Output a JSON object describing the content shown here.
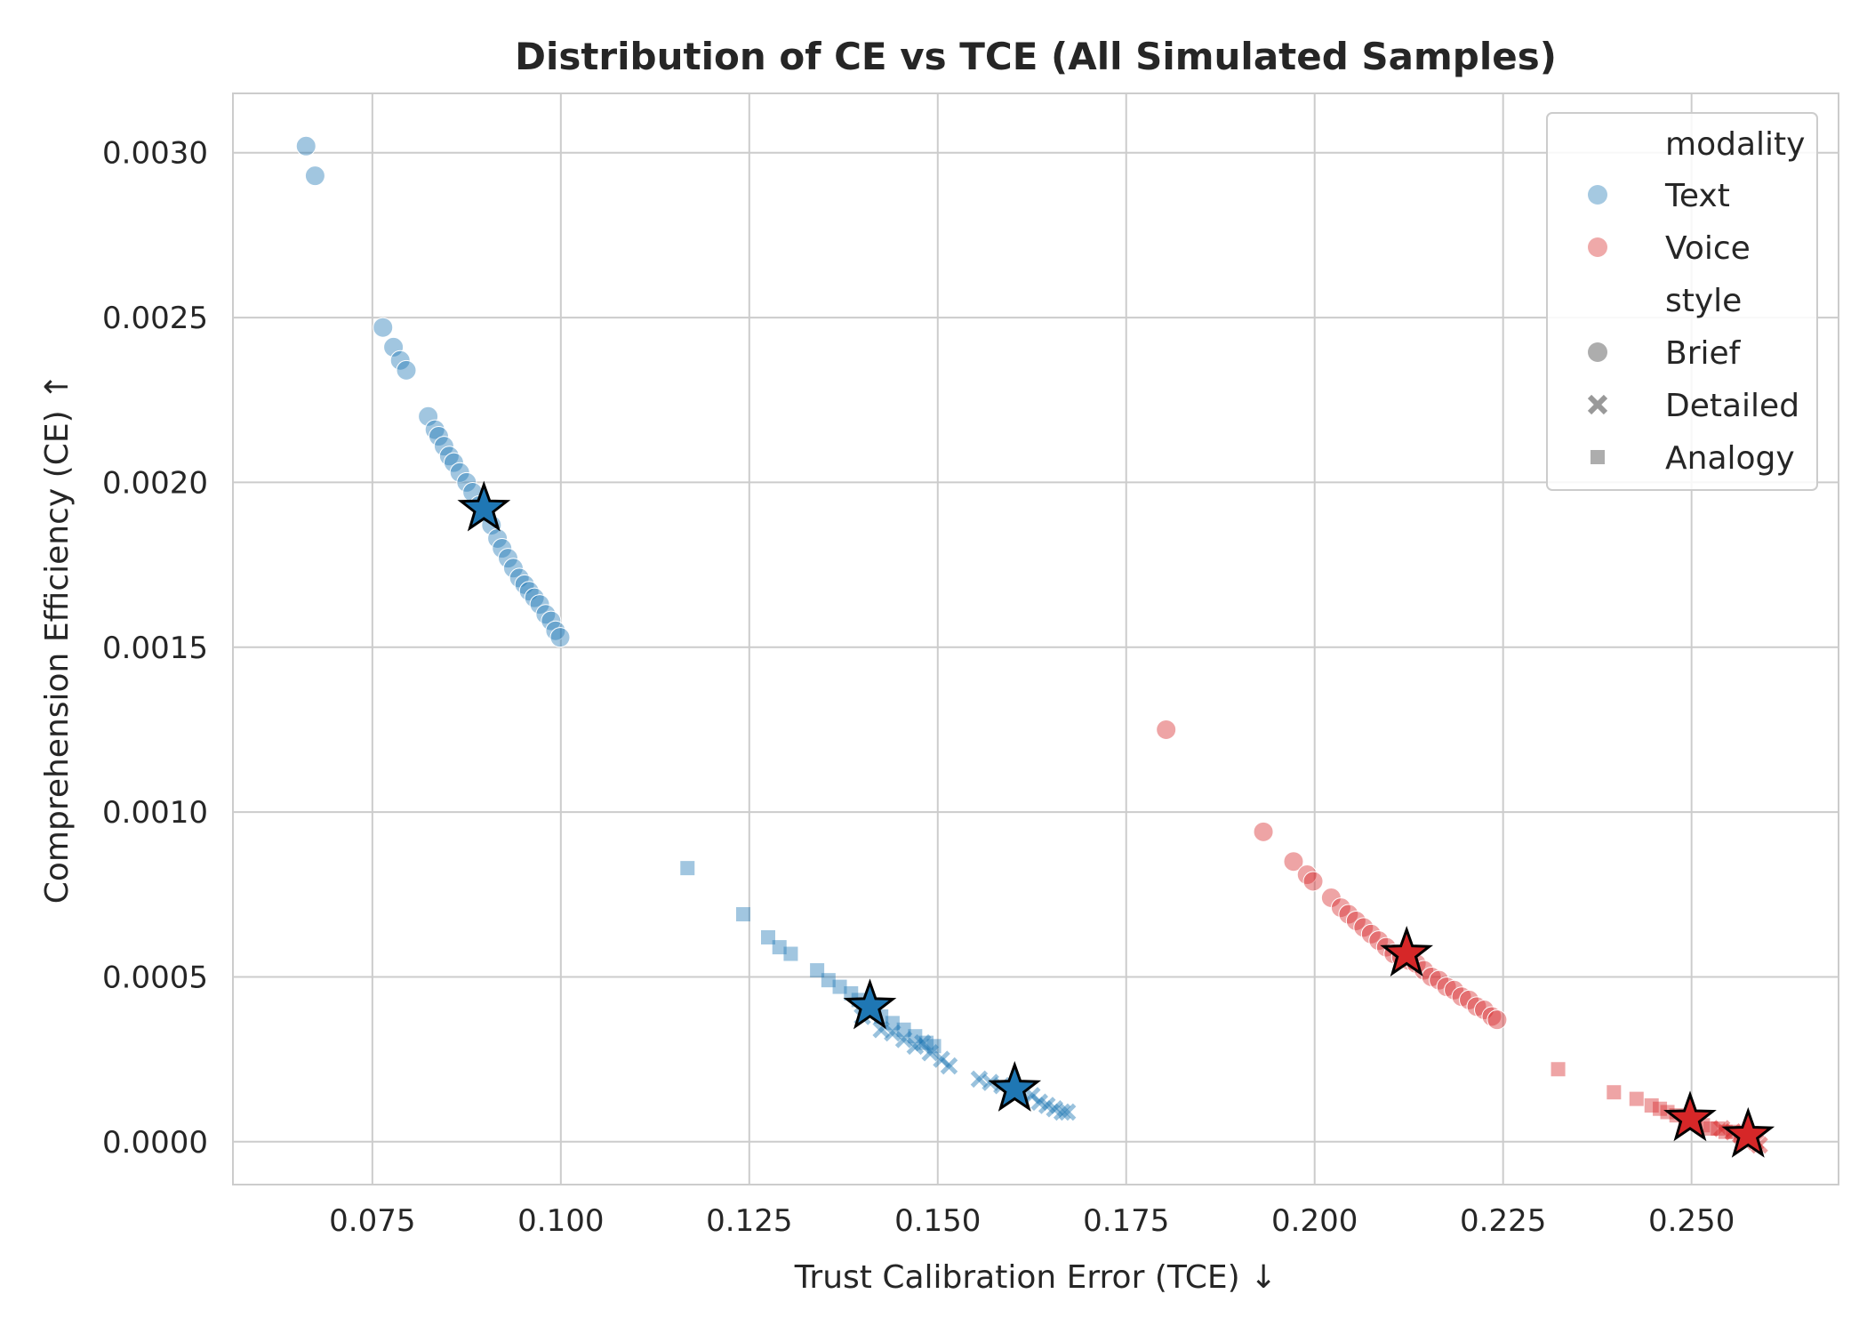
{
  "chart_data": {
    "type": "scatter",
    "title": "Distribution of CE vs TCE (All Simulated Samples)",
    "xlabel": "Trust Calibration Error (TCE) ↓",
    "ylabel": "Comprehension Efficiency (CE) ↑",
    "xlim": [
      0.0565,
      0.2695
    ],
    "ylim": [
      -0.00013,
      0.00318
    ],
    "x_ticks": [
      "0.075",
      "0.100",
      "0.125",
      "0.150",
      "0.175",
      "0.200",
      "0.225",
      "0.250"
    ],
    "y_ticks": [
      "0.0000",
      "0.0005",
      "0.0010",
      "0.0015",
      "0.0020",
      "0.0025",
      "0.0030"
    ],
    "grid": true,
    "legend_position": "top-right",
    "legend": {
      "hue_title": "modality",
      "style_title": "style",
      "hue_entries": [
        {
          "label": "Text",
          "color": "#1f77b4"
        },
        {
          "label": "Voice",
          "color": "#d62728"
        }
      ],
      "style_entries": [
        {
          "label": "Brief",
          "marker": "circle"
        },
        {
          "label": "Detailed",
          "marker": "x"
        },
        {
          "label": "Analogy",
          "marker": "square"
        }
      ]
    },
    "colors": {
      "Text": "#1f77b4",
      "Voice": "#d62728"
    },
    "series": [
      {
        "modality": "Text",
        "style": "Brief",
        "marker": "circle",
        "x": [
          0.0662,
          0.0674,
          0.0764,
          0.0778,
          0.0787,
          0.0795,
          0.0824,
          0.0833,
          0.0838,
          0.0845,
          0.0852,
          0.0858,
          0.0866,
          0.0875,
          0.0883,
          0.0892,
          0.09,
          0.0908,
          0.0916,
          0.0922,
          0.093,
          0.0937,
          0.0945,
          0.0952,
          0.0958,
          0.0965,
          0.0972,
          0.098,
          0.0987,
          0.0993,
          0.0999
        ],
        "y": [
          0.00302,
          0.00293,
          0.00247,
          0.00241,
          0.00237,
          0.00234,
          0.0022,
          0.00216,
          0.00214,
          0.00211,
          0.00208,
          0.00206,
          0.00203,
          0.002,
          0.00197,
          0.00193,
          0.00191,
          0.00187,
          0.00183,
          0.0018,
          0.00177,
          0.00174,
          0.00171,
          0.00169,
          0.00167,
          0.00165,
          0.00163,
          0.0016,
          0.00158,
          0.00155,
          0.00153
        ]
      },
      {
        "modality": "Text",
        "style": "Detailed",
        "marker": "x",
        "x": [
          0.14,
          0.1425,
          0.144,
          0.1455,
          0.147,
          0.148,
          0.149,
          0.1505,
          0.1515,
          0.1555,
          0.157,
          0.1585,
          0.16,
          0.1612,
          0.1625,
          0.1635,
          0.1645,
          0.1655,
          0.1665,
          0.1672
        ],
        "y": [
          0.00038,
          0.00034,
          0.00033,
          0.00031,
          0.00029,
          0.0003,
          0.00027,
          0.00025,
          0.00023,
          0.00019,
          0.00018,
          0.00017,
          0.00016,
          0.00015,
          0.00014,
          0.00012,
          0.00011,
          0.0001,
          9e-05,
          9e-05
        ]
      },
      {
        "modality": "Text",
        "style": "Analogy",
        "marker": "square",
        "x": [
          0.1168,
          0.1242,
          0.1275,
          0.129,
          0.1305,
          0.134,
          0.1355,
          0.137,
          0.1385,
          0.1395,
          0.141,
          0.1425,
          0.144,
          0.1455,
          0.147,
          0.1485,
          0.1495
        ],
        "y": [
          0.00083,
          0.00069,
          0.00062,
          0.00059,
          0.00057,
          0.00052,
          0.00049,
          0.00047,
          0.00045,
          0.00043,
          0.00041,
          0.00038,
          0.00036,
          0.00034,
          0.00032,
          0.0003,
          0.00029
        ]
      },
      {
        "modality": "Voice",
        "style": "Brief",
        "marker": "circle",
        "x": [
          0.1803,
          0.1932,
          0.1972,
          0.199,
          0.1998,
          0.2022,
          0.2035,
          0.2045,
          0.2055,
          0.2065,
          0.2075,
          0.2085,
          0.2095,
          0.2105,
          0.2115,
          0.2125,
          0.2135,
          0.2145,
          0.2155,
          0.2165,
          0.2175,
          0.2185,
          0.2195,
          0.2205,
          0.2215,
          0.2225,
          0.2235,
          0.2242
        ],
        "y": [
          0.00125,
          0.00094,
          0.00085,
          0.00081,
          0.00079,
          0.00074,
          0.00071,
          0.00069,
          0.00067,
          0.00065,
          0.00063,
          0.00061,
          0.00059,
          0.00057,
          0.00056,
          0.00055,
          0.00054,
          0.00052,
          0.0005,
          0.00049,
          0.00047,
          0.00046,
          0.00044,
          0.00043,
          0.00041,
          0.0004,
          0.00038,
          0.00037
        ]
      },
      {
        "modality": "Voice",
        "style": "Detailed",
        "marker": "x",
        "x": [
          0.254,
          0.2555,
          0.2565,
          0.2575,
          0.2585,
          0.259
        ],
        "y": [
          4e-05,
          3e-05,
          2e-05,
          1e-05,
          0.0,
          -1e-05
        ]
      },
      {
        "modality": "Voice",
        "style": "Analogy",
        "marker": "square",
        "x": [
          0.2323,
          0.2397,
          0.2427,
          0.2447,
          0.2458,
          0.2468,
          0.248,
          0.2492,
          0.2505,
          0.2515,
          0.2525,
          0.2535,
          0.2545,
          0.2555,
          0.2565,
          0.2575
        ],
        "y": [
          0.00022,
          0.00015,
          0.00013,
          0.00011,
          0.0001,
          9e-05,
          8e-05,
          7e-05,
          6e-05,
          5e-05,
          4e-05,
          4e-05,
          3e-05,
          3e-05,
          2e-05,
          1e-05
        ]
      }
    ],
    "means": [
      {
        "modality": "Text",
        "style": "Brief",
        "x": 0.0898,
        "y": 0.00192
      },
      {
        "modality": "Text",
        "style": "Analogy",
        "x": 0.141,
        "y": 0.00041
      },
      {
        "modality": "Text",
        "style": "Detailed",
        "x": 0.1602,
        "y": 0.00016
      },
      {
        "modality": "Voice",
        "style": "Brief",
        "x": 0.2122,
        "y": 0.00057
      },
      {
        "modality": "Voice",
        "style": "Analogy",
        "x": 0.2498,
        "y": 7e-05
      },
      {
        "modality": "Voice",
        "style": "Detailed",
        "x": 0.2575,
        "y": 2e-05
      }
    ]
  }
}
